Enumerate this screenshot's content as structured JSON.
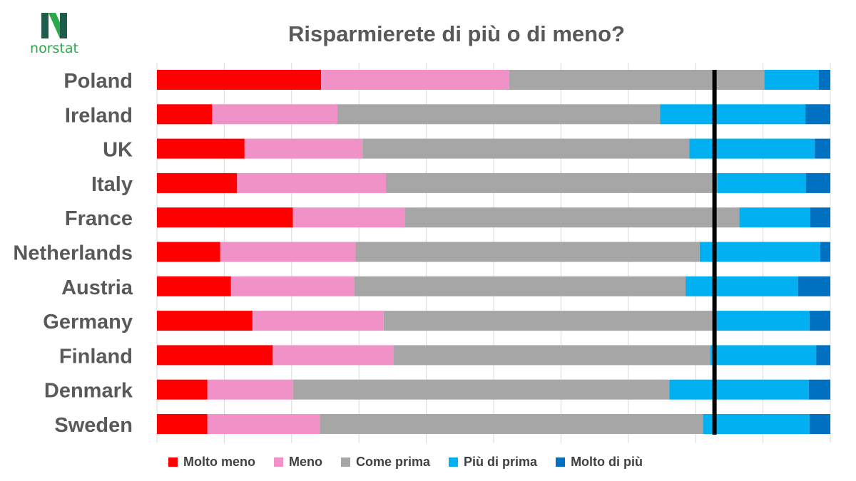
{
  "logo_text": "norstat",
  "chart_data": {
    "type": "bar",
    "orientation": "horizontal-stacked-100",
    "title": "Risparmierete di più o di meno?",
    "categories": [
      "Poland",
      "Ireland",
      "UK",
      "Italy",
      "France",
      "Netherlands",
      "Austria",
      "Germany",
      "Finland",
      "Denmark",
      "Sweden"
    ],
    "series": [
      {
        "name": "Molto meno",
        "color": "#ff0000",
        "values": [
          24.4,
          8.2,
          13.0,
          11.9,
          20.2,
          9.4,
          11.0,
          14.2,
          17.2,
          7.5,
          7.5
        ]
      },
      {
        "name": "Meno",
        "color": "#f092c8",
        "values": [
          27.9,
          18.6,
          17.5,
          22.1,
          16.6,
          20.1,
          18.3,
          19.5,
          17.9,
          12.7,
          16.7
        ]
      },
      {
        "name": "Come prima",
        "color": "#a6a6a6",
        "values": [
          38.0,
          47.9,
          48.5,
          49.2,
          49.7,
          51.1,
          49.2,
          49.5,
          47.1,
          55.9,
          56.9
        ]
      },
      {
        "name": "Più di prima",
        "color": "#00b0f0",
        "values": [
          8.1,
          21.6,
          18.6,
          13.2,
          10.5,
          17.9,
          16.7,
          13.8,
          15.7,
          20.7,
          15.8
        ]
      },
      {
        "name": "Molto di più",
        "color": "#0070c0",
        "values": [
          1.7,
          3.7,
          2.3,
          3.6,
          3.0,
          1.5,
          4.8,
          3.1,
          2.1,
          3.2,
          3.1
        ]
      }
    ],
    "xlim": [
      0,
      100
    ],
    "grid": true,
    "reference_line": 82.8,
    "legend_position": "bottom"
  }
}
